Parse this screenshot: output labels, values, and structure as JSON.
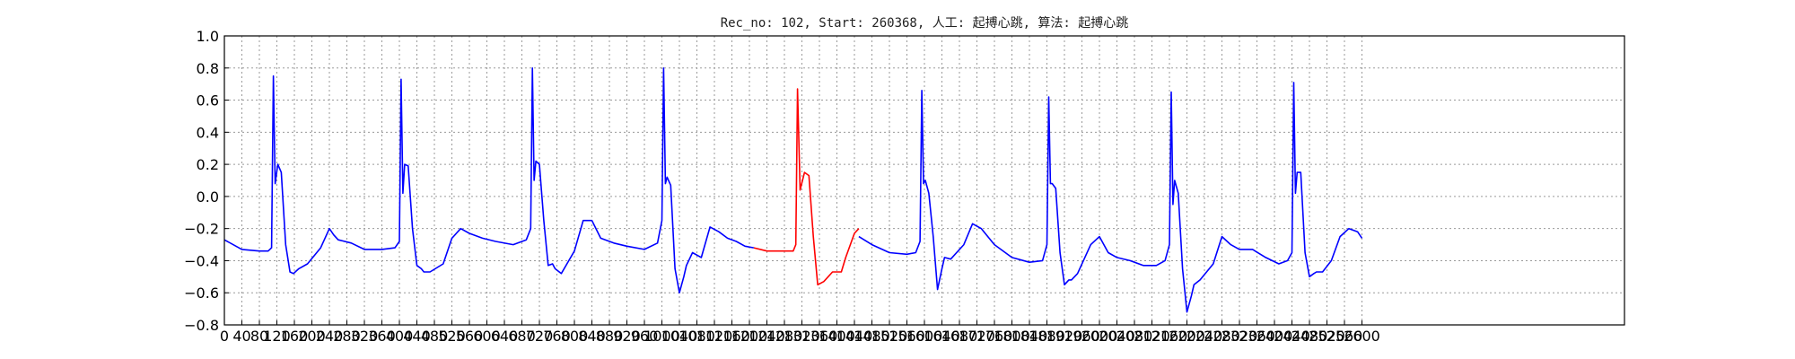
{
  "chart_data": {
    "type": "line",
    "title": "Rec_no: 102, Start: 260368, 人工: 起搏心跳, 算法: 起搏心跳",
    "xlabel": "",
    "ylabel": "",
    "xlim": [
      0,
      3200
    ],
    "ylim": [
      -0.8,
      1.0
    ],
    "grid": true,
    "y_ticks": [
      "1.0",
      "0.8",
      "0.6",
      "0.4",
      "0.2",
      "0.0",
      "−0.2",
      "−0.4",
      "−0.6",
      "−0.8"
    ],
    "y_tick_values": [
      1.0,
      0.8,
      0.6,
      0.4,
      0.2,
      0.0,
      -0.2,
      -0.4,
      -0.6,
      -0.8
    ],
    "x_ticks": [
      "0",
      "40",
      "80",
      "120",
      "160",
      "200",
      "240",
      "280",
      "320",
      "360",
      "400",
      "440",
      "480",
      "520",
      "560",
      "600",
      "640",
      "680",
      "720",
      "760",
      "800",
      "840",
      "880",
      "920",
      "960",
      "1000",
      "1040",
      "1080",
      "1120",
      "1160",
      "1200",
      "1240",
      "1280",
      "1320",
      "1360",
      "1400",
      "1440",
      "1480",
      "1520",
      "1560",
      "1600",
      "1640",
      "1680",
      "1720",
      "1760",
      "1800",
      "1840",
      "1880",
      "1920",
      "1960",
      "2000",
      "2040",
      "2080",
      "2120",
      "2160",
      "2200",
      "2240",
      "2280",
      "2320",
      "2360",
      "2400",
      "2440",
      "2480",
      "2520",
      "2560",
      "2600"
    ],
    "x_tick_values": [
      0,
      40,
      80,
      120,
      160,
      200,
      240,
      280,
      320,
      360,
      400,
      440,
      480,
      520,
      560,
      600,
      640,
      680,
      720,
      760,
      800,
      840,
      880,
      920,
      960,
      1000,
      1040,
      1080,
      1120,
      1160,
      1200,
      1240,
      1280,
      1320,
      1360,
      1400,
      1440,
      1480,
      1520,
      1560,
      1600,
      1640,
      1680,
      1720,
      1760,
      1800,
      1840,
      1880,
      1920,
      1960,
      2000,
      2040,
      2080,
      2120,
      2160,
      2200,
      2240,
      2280,
      2320,
      2360,
      2400,
      2440,
      2480,
      2520,
      2560,
      2600
    ],
    "series": [
      {
        "color": "#0000ff",
        "x": [
          0,
          40,
          80,
          100,
          108,
          112,
          116,
          122,
          130,
          140,
          150,
          158,
          170,
          190,
          220,
          240,
          250,
          260,
          290,
          320,
          360,
          390,
          400,
          404,
          408,
          412,
          420,
          430,
          440,
          450,
          456,
          470,
          500,
          520,
          540,
          560,
          590,
          620,
          660,
          690,
          700,
          704,
          708,
          712,
          720,
          730,
          740,
          750,
          756,
          770,
          800,
          820,
          840,
          860,
          890,
          920,
          960,
          990,
          1000,
          1004,
          1008,
          1012,
          1020,
          1030,
          1040,
          1050,
          1056,
          1070,
          1090,
          1110,
          1130,
          1150,
          1170,
          1190,
          1210
        ],
        "y": [
          -0.27,
          -0.33,
          -0.34,
          -0.34,
          -0.32,
          0.75,
          0.08,
          0.2,
          0.15,
          -0.3,
          -0.47,
          -0.48,
          -0.45,
          -0.42,
          -0.32,
          -0.2,
          -0.24,
          -0.27,
          -0.29,
          -0.33,
          -0.33,
          -0.32,
          -0.28,
          0.73,
          0.02,
          0.2,
          0.19,
          -0.2,
          -0.43,
          -0.45,
          -0.47,
          -0.47,
          -0.42,
          -0.26,
          -0.2,
          -0.23,
          -0.26,
          -0.28,
          -0.3,
          -0.27,
          -0.2,
          0.8,
          0.1,
          0.22,
          0.2,
          -0.15,
          -0.43,
          -0.42,
          -0.45,
          -0.48,
          -0.34,
          -0.15,
          -0.15,
          -0.26,
          -0.29,
          -0.31,
          -0.33,
          -0.29,
          -0.15,
          0.8,
          0.08,
          0.12,
          0.07,
          -0.45,
          -0.6,
          -0.5,
          -0.43,
          -0.35,
          -0.38,
          -0.19,
          -0.22,
          -0.26,
          -0.28,
          -0.31,
          -0.32
        ]
      },
      {
        "color": "#ff0000",
        "x": [
          1210,
          1240,
          1270,
          1300,
          1306,
          1310,
          1316,
          1326,
          1336,
          1346,
          1356,
          1370,
          1390,
          1410,
          1420,
          1440,
          1450
        ],
        "y": [
          -0.32,
          -0.34,
          -0.34,
          -0.34,
          -0.3,
          0.67,
          0.04,
          0.15,
          0.13,
          -0.25,
          -0.55,
          -0.53,
          -0.47,
          -0.47,
          -0.38,
          -0.23,
          -0.2
        ]
      },
      {
        "color": "#0000ff",
        "x": [
          1450,
          1480,
          1520,
          1560,
          1580,
          1590,
          1594,
          1598,
          1602,
          1610,
          1620,
          1630,
          1640,
          1646,
          1660,
          1690,
          1710,
          1730,
          1760,
          1800,
          1840,
          1870,
          1880,
          1884,
          1888,
          1892,
          1900,
          1910,
          1920,
          1930,
          1936,
          1950,
          1980,
          2000,
          2020,
          2040,
          2070,
          2100,
          2130,
          2150,
          2160,
          2164,
          2168,
          2172,
          2180,
          2190,
          2200,
          2210,
          2216,
          2230,
          2260,
          2280,
          2300,
          2320,
          2350,
          2380,
          2410,
          2430,
          2440,
          2444,
          2448,
          2452,
          2460,
          2470,
          2480,
          2490,
          2496,
          2510,
          2530,
          2550,
          2570,
          2590,
          2600
        ],
        "y": [
          -0.25,
          -0.3,
          -0.35,
          -0.36,
          -0.35,
          -0.28,
          0.66,
          0.08,
          0.1,
          0.02,
          -0.25,
          -0.58,
          -0.45,
          -0.38,
          -0.39,
          -0.3,
          -0.17,
          -0.2,
          -0.3,
          -0.38,
          -0.41,
          -0.4,
          -0.3,
          0.62,
          0.08,
          0.08,
          0.05,
          -0.35,
          -0.55,
          -0.52,
          -0.52,
          -0.48,
          -0.3,
          -0.25,
          -0.35,
          -0.38,
          -0.4,
          -0.43,
          -0.43,
          -0.4,
          -0.3,
          0.65,
          -0.05,
          0.1,
          0.02,
          -0.45,
          -0.72,
          -0.62,
          -0.55,
          -0.52,
          -0.42,
          -0.25,
          -0.3,
          -0.33,
          -0.33,
          -0.38,
          -0.42,
          -0.4,
          -0.35,
          0.71,
          0.02,
          0.15,
          0.15,
          -0.35,
          -0.5,
          -0.48,
          -0.47,
          -0.47,
          -0.4,
          -0.25,
          -0.2,
          -0.22,
          -0.26
        ]
      }
    ]
  }
}
